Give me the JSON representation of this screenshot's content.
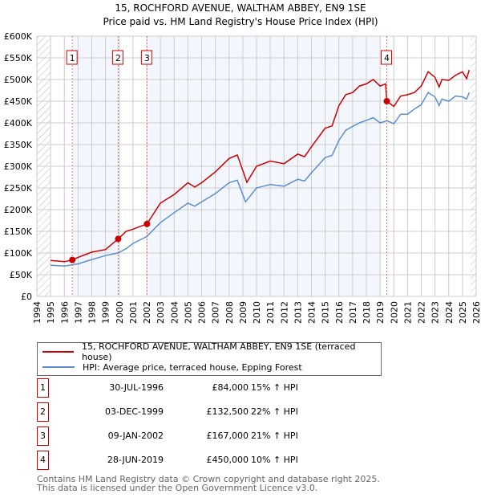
{
  "chart_data": {
    "type": "line",
    "title": "15, ROCHFORD AVENUE, WALTHAM ABBEY, EN9 1SE",
    "subtitle": "Price paid vs. HM Land Registry's House Price Index (HPI)",
    "xlim": [
      1994,
      2026
    ],
    "ylim": [
      0,
      600000
    ],
    "x_ticks": [
      "1994",
      "1995",
      "1996",
      "1997",
      "1998",
      "1999",
      "2000",
      "2001",
      "2002",
      "2003",
      "2004",
      "2005",
      "2006",
      "2007",
      "2008",
      "2009",
      "2010",
      "2011",
      "2012",
      "2013",
      "2014",
      "2015",
      "2016",
      "2017",
      "2018",
      "2019",
      "2020",
      "2021",
      "2022",
      "2023",
      "2024",
      "2025",
      "2026"
    ],
    "y_ticks": [
      "£0",
      "£50K",
      "£100K",
      "£150K",
      "£200K",
      "£250K",
      "£300K",
      "£350K",
      "£400K",
      "£450K",
      "£500K",
      "£550K",
      "£600K"
    ],
    "grid": true,
    "series": [
      {
        "name": "15, ROCHFORD AVENUE, WALTHAM ABBEY, EN9 1SE (terraced house)",
        "color": "#cc0000",
        "x": [
          1995,
          1996,
          1996.58,
          1997,
          1998,
          1999,
          1999.92,
          2000.5,
          2001,
          2002.02,
          2003,
          2004,
          2005,
          2005.5,
          2006,
          2007,
          2008,
          2008.6,
          2009,
          2009.3,
          2010,
          2011,
          2012,
          2013,
          2013.5,
          2014,
          2015,
          2015.5,
          2016,
          2016.5,
          2017,
          2017.5,
          2018,
          2018.5,
          2019,
          2019.4,
          2019.49,
          2020,
          2020.5,
          2021,
          2021.5,
          2022,
          2022.5,
          2023,
          2023.3,
          2023.5,
          2024,
          2024.5,
          2025,
          2025.3,
          2025.5
        ],
        "values": [
          83000,
          80000,
          84000,
          90000,
          102000,
          108000,
          132500,
          150000,
          155000,
          167000,
          215000,
          235000,
          262000,
          252000,
          262000,
          287000,
          318000,
          326000,
          290000,
          263000,
          300000,
          312000,
          306000,
          328000,
          322000,
          345000,
          388000,
          393000,
          440000,
          465000,
          470000,
          485000,
          490000,
          500000,
          485000,
          490000,
          450000,
          438000,
          462000,
          465000,
          470000,
          485000,
          518000,
          505000,
          483000,
          500000,
          498000,
          510000,
          518000,
          502000,
          522000
        ]
      },
      {
        "name": "HPI: Average price, terraced house, Epping Forest",
        "color": "#5b8fd0",
        "x": [
          1995,
          1996,
          1996.6,
          1997,
          1998,
          1999,
          1999.9,
          2000.5,
          2001,
          2002,
          2003,
          2004,
          2005,
          2005.5,
          2006,
          2007,
          2008,
          2008.6,
          2009.2,
          2010,
          2011,
          2012,
          2013,
          2013.5,
          2014,
          2015,
          2015.5,
          2016,
          2016.5,
          2017,
          2017.5,
          2018,
          2018.5,
          2019,
          2019.5,
          2020,
          2020.5,
          2021,
          2021.5,
          2022,
          2022.5,
          2023,
          2023.3,
          2023.5,
          2024,
          2024.5,
          2025,
          2025.3,
          2025.5
        ],
        "values": [
          72000,
          70000,
          73000,
          75000,
          85000,
          94000,
          100000,
          110000,
          122000,
          138000,
          170000,
          193000,
          215000,
          208000,
          218000,
          237000,
          262000,
          268000,
          218000,
          250000,
          258000,
          254000,
          270000,
          266000,
          285000,
          320000,
          325000,
          360000,
          383000,
          392000,
          400000,
          406000,
          412000,
          400000,
          405000,
          398000,
          420000,
          420000,
          432000,
          442000,
          470000,
          460000,
          440000,
          455000,
          450000,
          462000,
          460000,
          455000,
          470000
        ]
      }
    ],
    "sales": [
      {
        "label": "1",
        "x": 1996.58,
        "value": 84000,
        "date": "30-JUL-1996",
        "price": "£84,000",
        "hpi": "15% ↑ HPI"
      },
      {
        "label": "2",
        "x": 1999.92,
        "value": 132500,
        "date": "03-DEC-1999",
        "price": "£132,500",
        "hpi": "22% ↑ HPI"
      },
      {
        "label": "3",
        "x": 2002.02,
        "value": 167000,
        "date": "09-JAN-2002",
        "price": "£167,000",
        "hpi": "21% ↑ HPI"
      },
      {
        "label": "4",
        "x": 2019.49,
        "value": 450000,
        "date": "28-JUN-2019",
        "price": "£450,000",
        "hpi": "10% ↑ HPI"
      }
    ]
  },
  "legend": {
    "property": "15, ROCHFORD AVENUE, WALTHAM ABBEY, EN9 1SE (terraced house)",
    "hpi": "HPI: Average price, terraced house, Epping Forest"
  },
  "footer": {
    "line1": "Contains HM Land Registry data © Crown copyright and database right 2025.",
    "line2": "This data is licensed under the Open Government Licence v3.0."
  }
}
